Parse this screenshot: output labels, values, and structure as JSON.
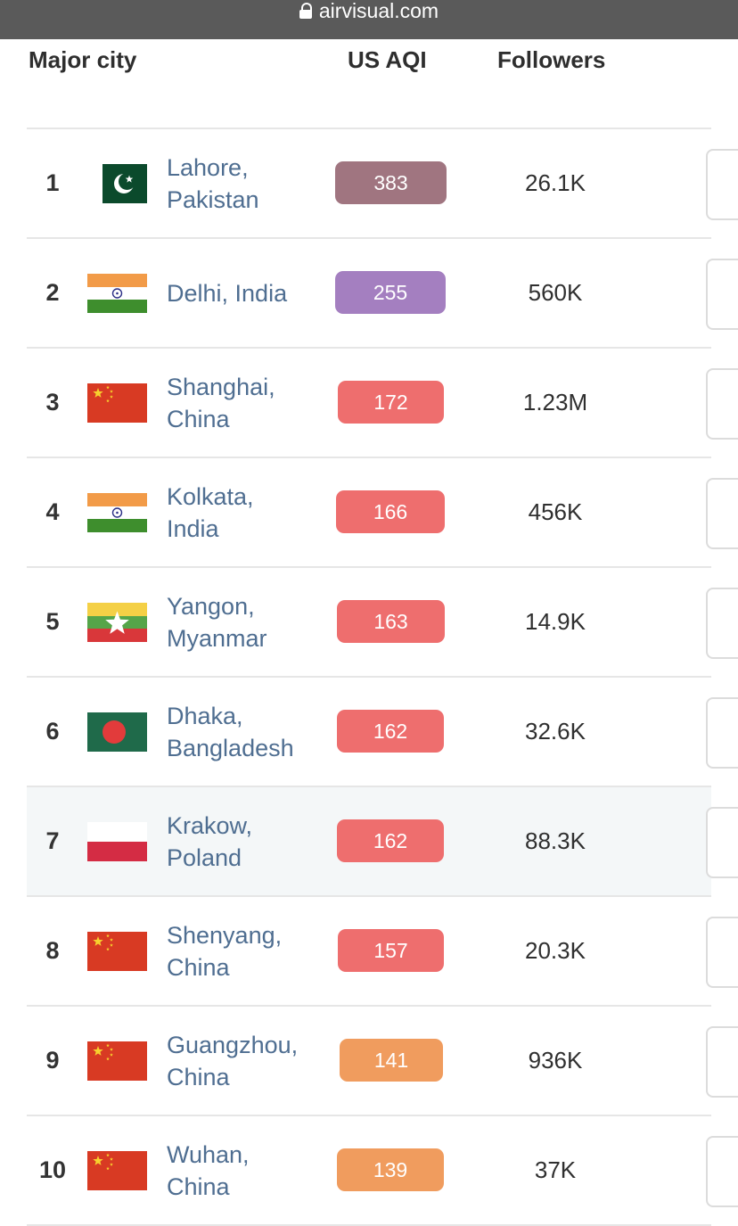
{
  "browser": {
    "url": "airvisual.com"
  },
  "header": {
    "city": "Major city",
    "aqi": "US AQI",
    "followers": "Followers"
  },
  "colors": {
    "hazardous": "#a07580",
    "very_unhealthy": "#a47fc0",
    "unhealthy": "#ee6e6e",
    "unhealthy_sensitive": "#f09c5e",
    "city_link": "#4f6e91",
    "highlight_row": "#f4f7f8"
  },
  "rows": [
    {
      "rank": "1",
      "city_line1": "Lahore,",
      "city_line2": "Pakistan",
      "flag": "pakistan-flag",
      "aqi": "383",
      "aqi_color": "#a07580",
      "followers": "26.1K"
    },
    {
      "rank": "2",
      "city_line1": "Delhi, India",
      "city_line2": "",
      "flag": "india-flag",
      "aqi": "255",
      "aqi_color": "#a47fc0",
      "followers": "560K"
    },
    {
      "rank": "3",
      "city_line1": "Shanghai,",
      "city_line2": "China",
      "flag": "china-flag",
      "aqi": "172",
      "aqi_color": "#ee6e6e",
      "followers": "1.23M"
    },
    {
      "rank": "4",
      "city_line1": "Kolkata,",
      "city_line2": "India",
      "flag": "india-flag",
      "aqi": "166",
      "aqi_color": "#ee6e6e",
      "followers": "456K"
    },
    {
      "rank": "5",
      "city_line1": "Yangon,",
      "city_line2": "Myanmar",
      "flag": "myanmar-flag",
      "aqi": "163",
      "aqi_color": "#ee6e6e",
      "followers": "14.9K"
    },
    {
      "rank": "6",
      "city_line1": "Dhaka,",
      "city_line2": "Bangladesh",
      "flag": "bangladesh-flag",
      "aqi": "162",
      "aqi_color": "#ee6e6e",
      "followers": "32.6K"
    },
    {
      "rank": "7",
      "city_line1": "Krakow,",
      "city_line2": "Poland",
      "flag": "poland-flag",
      "aqi": "162",
      "aqi_color": "#ee6e6e",
      "followers": "88.3K",
      "highlighted": true
    },
    {
      "rank": "8",
      "city_line1": "Shenyang,",
      "city_line2": "China",
      "flag": "china-flag",
      "aqi": "157",
      "aqi_color": "#ee6e6e",
      "followers": "20.3K"
    },
    {
      "rank": "9",
      "city_line1": "Guangzhou,",
      "city_line2": "China",
      "flag": "china-flag",
      "aqi": "141",
      "aqi_color": "#f09c5e",
      "followers": "936K"
    },
    {
      "rank": "10",
      "city_line1": "Wuhan,",
      "city_line2": "China",
      "flag": "china-flag",
      "aqi": "139",
      "aqi_color": "#f09c5e",
      "followers": "37K"
    }
  ]
}
